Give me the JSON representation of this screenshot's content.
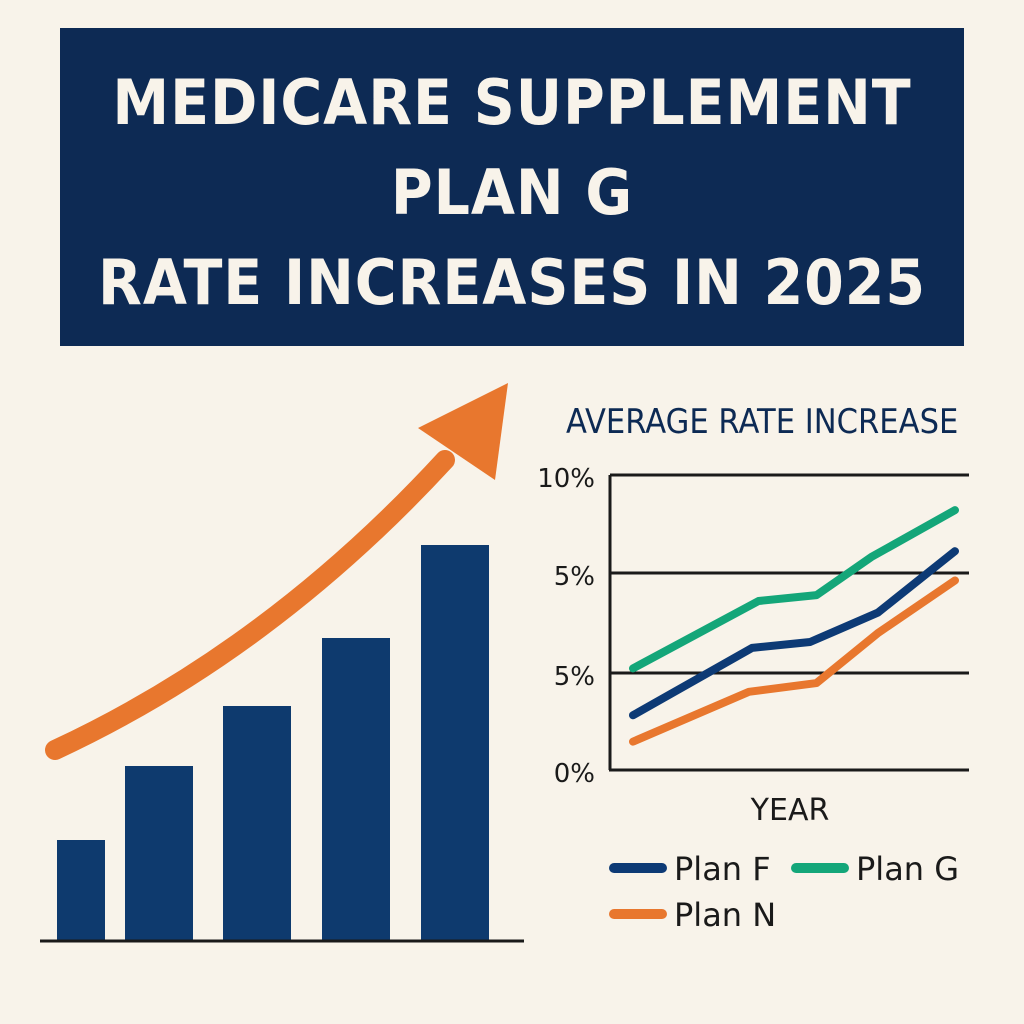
{
  "title": {
    "line1": "MEDICARE SUPPLEMENT",
    "line2": "PLAN G",
    "line3": "RATE INCREASES IN 2025"
  },
  "colors": {
    "navy": "#0d2a54",
    "bar": "#0e3a6e",
    "orange": "#e8772e",
    "green": "#14a679",
    "background": "#f8f3ea"
  },
  "chart_data": [
    {
      "type": "bar",
      "title": "",
      "categories": [
        "",
        "",
        "",
        "",
        ""
      ],
      "values": [
        100,
        174,
        234,
        302,
        395
      ],
      "ylim": [
        0,
        400
      ],
      "axis_labels": false,
      "trend_arrow": {
        "color": "#e8772e",
        "direction": "up-right"
      }
    },
    {
      "type": "line",
      "title": "AVERAGE RATE INCREASE",
      "xlabel": "YEAR",
      "ylabel": "",
      "y_tick_labels": [
        "10%",
        "5%",
        "5%",
        "0%"
      ],
      "ylim": [
        0,
        10
      ],
      "xlim": [
        0,
        10
      ],
      "grid": "horizontal",
      "legend": "bottom",
      "series": [
        {
          "name": "Plan F",
          "color": "#0d3a75",
          "x": [
            0,
            3.7,
            5.5,
            7.6,
            10
          ],
          "y": [
            1.8,
            4.1,
            4.3,
            5.3,
            7.4
          ]
        },
        {
          "name": "Plan G",
          "color": "#14a679",
          "x": [
            0,
            3.9,
            5.7,
            7.4,
            10
          ],
          "y": [
            3.4,
            5.7,
            5.9,
            7.2,
            8.8
          ]
        },
        {
          "name": "Plan N",
          "color": "#e8772e",
          "x": [
            0,
            3.6,
            5.7,
            7.6,
            10
          ],
          "y": [
            0.9,
            2.6,
            2.9,
            4.6,
            6.4
          ]
        }
      ]
    }
  ]
}
